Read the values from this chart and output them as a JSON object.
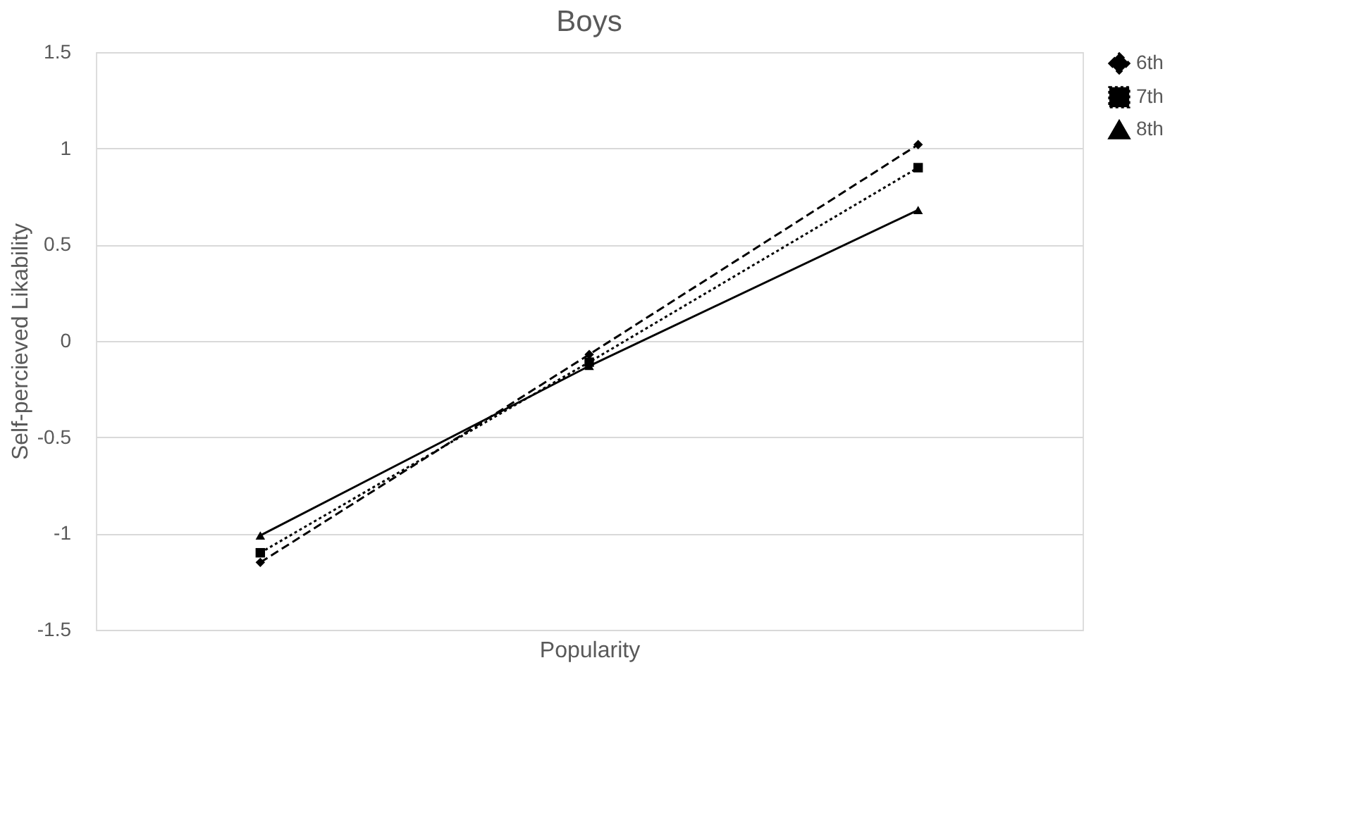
{
  "chart_data": {
    "type": "line",
    "title": "Boys",
    "xlabel": "Popularity",
    "ylabel": "Self-percieved Likability",
    "categories": [
      null,
      null,
      null
    ],
    "series": [
      {
        "name": "6th",
        "color": "#000000",
        "marker": "diamond",
        "line_style": "dashed",
        "values": [
          -1.15,
          -0.07,
          1.02
        ]
      },
      {
        "name": "7th",
        "color": "#000000",
        "marker": "square",
        "line_style": "dotted",
        "values": [
          -1.1,
          -0.11,
          0.9
        ]
      },
      {
        "name": "8th",
        "color": "#000000",
        "marker": "triangle",
        "line_style": "solid",
        "values": [
          -1.01,
          -0.13,
          0.68
        ]
      }
    ],
    "ylim": [
      -1.5,
      1.5
    ],
    "yticks": [
      -1.5,
      -1,
      -0.5,
      0,
      0.5,
      1,
      1.5
    ],
    "grid": "y",
    "legend": "right"
  }
}
